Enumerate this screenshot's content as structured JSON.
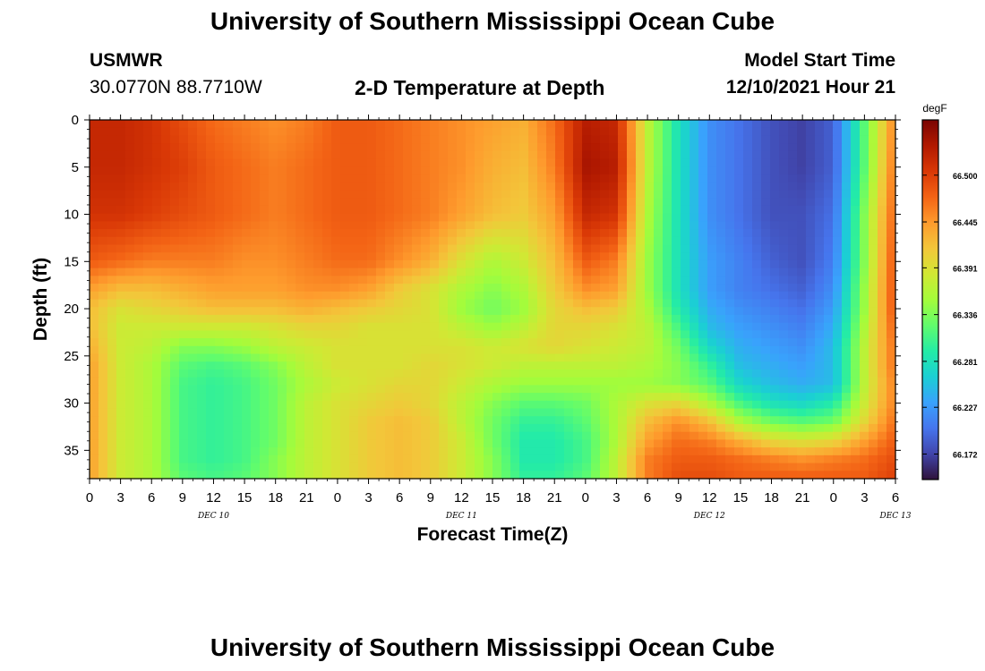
{
  "page": {
    "title": "University of Southern Mississippi Ocean Cube",
    "title_repeat": "University of Southern Mississippi Ocean Cube",
    "station": "USMWR",
    "coords": "30.0770N  88.7710W",
    "plot_title": "2-D Temperature at Depth",
    "model_start_label": "Model Start Time",
    "model_start_value": "12/10/2021 Hour 21"
  },
  "chart_data": {
    "type": "heatmap",
    "title": "2-D Temperature at Depth",
    "xlabel": "Forecast Time(Z)",
    "ylabel": "Depth (ft)",
    "x_tick_labels": [
      "0",
      "3",
      "6",
      "9",
      "12",
      "15",
      "18",
      "21",
      "0",
      "3",
      "6",
      "9",
      "12",
      "15",
      "18",
      "21",
      "0",
      "3",
      "6",
      "9",
      "12",
      "15",
      "18",
      "21",
      "0",
      "3",
      "6"
    ],
    "date_labels": [
      {
        "label": "DEC 10",
        "tick_index": 4
      },
      {
        "label": "DEC 11",
        "tick_index": 12
      },
      {
        "label": "DEC 12",
        "tick_index": 20
      },
      {
        "label": "DEC 13",
        "tick_index": 26
      }
    ],
    "y_ticks": [
      0,
      5,
      10,
      15,
      20,
      25,
      30,
      35
    ],
    "ylim": [
      0,
      38
    ],
    "y_inverted": true,
    "x_range_hours": [
      0,
      78
    ],
    "colorbar": {
      "unit": "degF",
      "ticks": [
        "66.500",
        "66.445",
        "66.391",
        "66.336",
        "66.281",
        "66.227",
        "66.172"
      ],
      "range": [
        66.142,
        66.565
      ],
      "colormap": [
        "#30123b",
        "#4145ab",
        "#4675ed",
        "#39a2fc",
        "#1bcfd4",
        "#24eca6",
        "#61fc6c",
        "#a4fc3b",
        "#d1e834",
        "#f3c63a",
        "#fe9b2d",
        "#f36315",
        "#d93806",
        "#b11901",
        "#7a0402"
      ]
    },
    "depths_ft": [
      0,
      5,
      10,
      15,
      18,
      20,
      22,
      24,
      26,
      28,
      30,
      32,
      34,
      36,
      38
    ],
    "forecast_hours": [
      0,
      3,
      6,
      9,
      12,
      15,
      18,
      21,
      24,
      27,
      30,
      33,
      36,
      39,
      42,
      45,
      48,
      51,
      54,
      57,
      60,
      63,
      66,
      69,
      72,
      75,
      78
    ],
    "temperature_degF": [
      [
        66.52,
        66.52,
        66.51,
        66.49,
        66.47,
        66.46,
        66.45,
        66.46,
        66.48,
        66.48,
        66.47,
        66.46,
        66.45,
        66.44,
        66.43,
        66.47,
        66.53,
        66.52,
        66.37,
        66.28,
        66.22,
        66.2,
        66.18,
        66.17,
        66.19,
        66.32,
        66.46
      ],
      [
        66.52,
        66.52,
        66.51,
        66.5,
        66.48,
        66.47,
        66.46,
        66.47,
        66.48,
        66.48,
        66.47,
        66.46,
        66.45,
        66.43,
        66.42,
        66.46,
        66.54,
        66.53,
        66.37,
        66.28,
        66.22,
        66.2,
        66.18,
        66.17,
        66.19,
        66.32,
        66.47
      ],
      [
        66.51,
        66.51,
        66.5,
        66.49,
        66.48,
        66.47,
        66.46,
        66.47,
        66.48,
        66.48,
        66.47,
        66.46,
        66.44,
        66.42,
        66.41,
        66.44,
        66.52,
        66.51,
        66.36,
        66.28,
        66.22,
        66.2,
        66.18,
        66.18,
        66.2,
        66.34,
        66.48
      ],
      [
        66.48,
        66.47,
        66.46,
        66.46,
        66.46,
        66.45,
        66.45,
        66.46,
        66.47,
        66.47,
        66.45,
        66.43,
        66.39,
        66.36,
        66.38,
        66.42,
        66.48,
        66.46,
        66.35,
        66.28,
        66.23,
        66.21,
        66.19,
        66.18,
        66.21,
        66.34,
        66.49
      ],
      [
        66.44,
        66.42,
        66.42,
        66.43,
        66.44,
        66.44,
        66.44,
        66.45,
        66.45,
        66.44,
        66.41,
        66.39,
        66.36,
        66.34,
        66.36,
        66.41,
        66.45,
        66.44,
        66.35,
        66.28,
        66.23,
        66.21,
        66.2,
        66.19,
        66.22,
        66.35,
        66.49
      ],
      [
        66.42,
        66.39,
        66.4,
        66.41,
        66.42,
        66.42,
        66.42,
        66.43,
        66.42,
        66.41,
        66.4,
        66.39,
        66.35,
        66.33,
        66.35,
        66.4,
        66.42,
        66.41,
        66.36,
        66.29,
        66.24,
        66.22,
        66.21,
        66.2,
        66.23,
        66.35,
        66.49
      ],
      [
        66.42,
        66.38,
        66.38,
        66.38,
        66.38,
        66.38,
        66.39,
        66.4,
        66.4,
        66.39,
        66.39,
        66.39,
        66.37,
        66.35,
        66.37,
        66.4,
        66.4,
        66.39,
        66.37,
        66.31,
        66.25,
        66.23,
        66.22,
        66.21,
        66.24,
        66.36,
        66.48
      ],
      [
        66.43,
        66.38,
        66.37,
        66.34,
        66.34,
        66.35,
        66.37,
        66.38,
        66.39,
        66.39,
        66.39,
        66.39,
        66.39,
        66.38,
        66.39,
        66.4,
        66.39,
        66.38,
        66.37,
        66.33,
        66.27,
        66.24,
        66.23,
        66.22,
        66.25,
        66.37,
        66.47
      ],
      [
        66.44,
        66.38,
        66.36,
        66.32,
        66.31,
        66.32,
        66.34,
        66.37,
        66.39,
        66.39,
        66.39,
        66.4,
        66.39,
        66.38,
        66.37,
        66.37,
        66.37,
        66.37,
        66.36,
        66.34,
        66.3,
        66.25,
        66.24,
        66.23,
        66.25,
        66.37,
        66.47
      ],
      [
        66.44,
        66.38,
        66.36,
        66.31,
        66.3,
        66.31,
        66.33,
        66.36,
        66.38,
        66.39,
        66.4,
        66.4,
        66.38,
        66.36,
        66.35,
        66.35,
        66.35,
        66.35,
        66.35,
        66.34,
        66.32,
        66.27,
        66.25,
        66.24,
        66.25,
        66.37,
        66.46
      ],
      [
        66.44,
        66.38,
        66.36,
        66.31,
        66.3,
        66.31,
        66.33,
        66.37,
        66.39,
        66.4,
        66.41,
        66.4,
        66.37,
        66.34,
        66.32,
        66.32,
        66.33,
        66.36,
        66.39,
        66.4,
        66.36,
        66.31,
        66.28,
        66.27,
        66.29,
        66.38,
        66.46
      ],
      [
        66.44,
        66.38,
        66.36,
        66.31,
        66.3,
        66.31,
        66.33,
        66.37,
        66.39,
        66.41,
        66.42,
        66.41,
        66.37,
        66.33,
        66.3,
        66.3,
        66.32,
        66.36,
        66.42,
        66.45,
        66.42,
        66.36,
        66.33,
        66.32,
        66.33,
        66.4,
        66.47
      ],
      [
        66.44,
        66.38,
        66.36,
        66.31,
        66.3,
        66.31,
        66.33,
        66.37,
        66.39,
        66.41,
        66.42,
        66.41,
        66.38,
        66.33,
        66.29,
        66.29,
        66.31,
        66.36,
        66.44,
        66.47,
        66.46,
        66.43,
        66.4,
        66.39,
        66.4,
        66.44,
        66.48
      ],
      [
        66.44,
        66.38,
        66.36,
        66.31,
        66.3,
        66.31,
        66.34,
        66.37,
        66.39,
        66.41,
        66.42,
        66.41,
        66.38,
        66.34,
        66.29,
        66.29,
        66.31,
        66.37,
        66.46,
        66.48,
        66.48,
        66.47,
        66.46,
        66.45,
        66.46,
        66.47,
        66.49
      ],
      [
        66.44,
        66.38,
        66.36,
        66.32,
        66.31,
        66.32,
        66.34,
        66.37,
        66.39,
        66.41,
        66.42,
        66.41,
        66.38,
        66.34,
        66.3,
        66.3,
        66.32,
        66.37,
        66.46,
        66.49,
        66.49,
        66.48,
        66.48,
        66.48,
        66.48,
        66.48,
        66.5
      ]
    ]
  }
}
